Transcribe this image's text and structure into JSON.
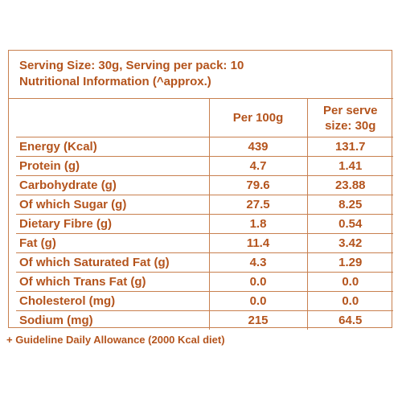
{
  "header": {
    "line1": "Serving Size: 30g, Serving per pack: 10",
    "line2": "Nutritional Information (^approx.)"
  },
  "table": {
    "columns": [
      "",
      "Per 100g",
      "Per serve\nsize: 30g"
    ],
    "rows": [
      {
        "label": "Energy (Kcal)",
        "per100": "439",
        "perServe": "131.7"
      },
      {
        "label": "Protein (g)",
        "per100": "4.7",
        "perServe": "1.41"
      },
      {
        "label": "Carbohydrate (g)",
        "per100": "79.6",
        "perServe": "23.88"
      },
      {
        "label": "Of which Sugar (g)",
        "per100": "27.5",
        "perServe": "8.25"
      },
      {
        "label": "Dietary Fibre (g)",
        "per100": "1.8",
        "perServe": "0.54"
      },
      {
        "label": "Fat (g)",
        "per100": "11.4",
        "perServe": "3.42"
      },
      {
        "label": "Of which Saturated Fat (g)",
        "per100": "4.3",
        "perServe": "1.29"
      },
      {
        "label": "Of which Trans Fat (g)",
        "per100": "0.0",
        "perServe": "0.0"
      },
      {
        "label": "Cholesterol (mg)",
        "per100": "0.0",
        "perServe": "0.0"
      },
      {
        "label": "Sodium (mg)",
        "per100": "215",
        "perServe": "64.5"
      }
    ]
  },
  "footnote": "+ Guideline Daily Allowance (2000 Kcal diet)",
  "colors": {
    "text": "#b4541d",
    "border": "#c8804f",
    "background": "#ffffff"
  }
}
